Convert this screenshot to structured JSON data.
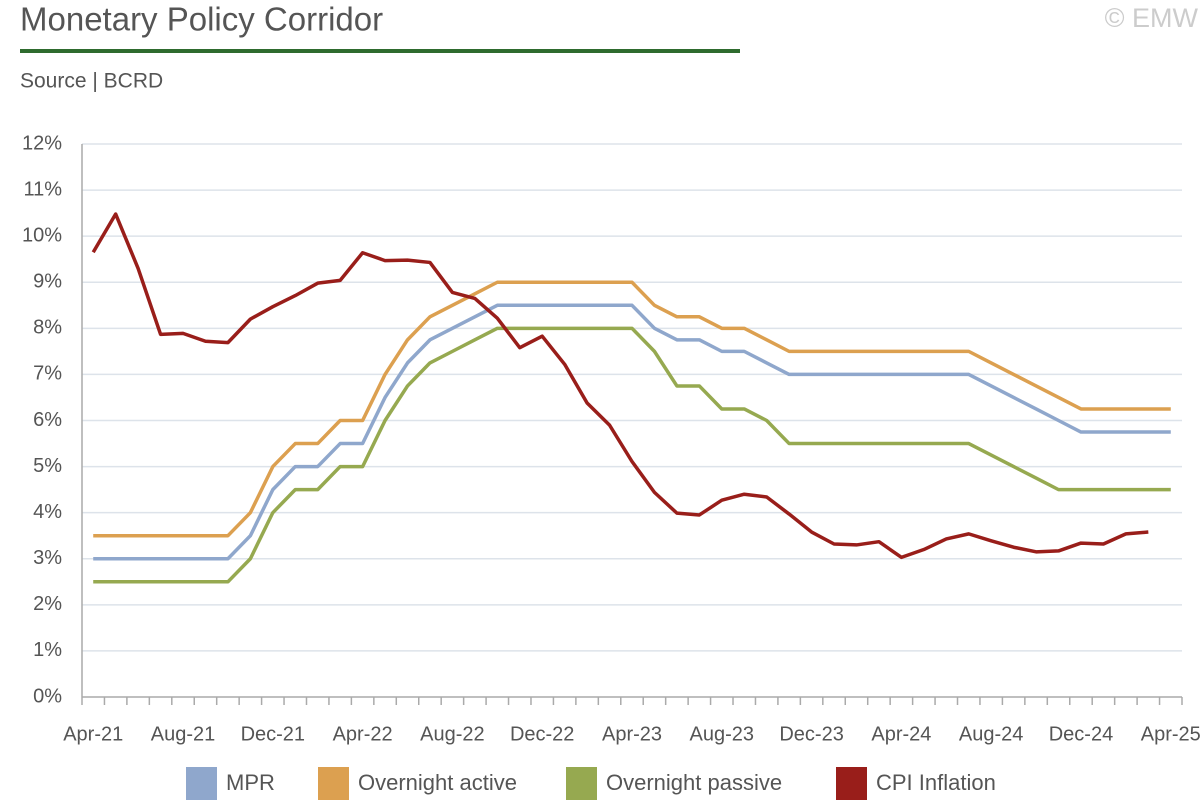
{
  "chart_data": {
    "type": "line",
    "title": "Monetary Policy Corridor",
    "subtitle": "Source | BCRD",
    "watermark": "© EMW",
    "categories": [
      "Apr-21",
      null,
      null,
      null,
      "Aug-21",
      null,
      null,
      null,
      "Dec-21",
      null,
      null,
      null,
      "Apr-22",
      null,
      null,
      null,
      "Aug-22",
      null,
      null,
      null,
      "Dec-22",
      null,
      null,
      null,
      "Apr-23",
      null,
      null,
      null,
      "Aug-23",
      null,
      null,
      null,
      "Dec-23",
      null,
      null,
      null,
      "Apr-24",
      null,
      null,
      null,
      "Aug-24",
      null,
      null,
      null,
      "Dec-24",
      null,
      null,
      null,
      "Apr-25"
    ],
    "series": [
      {
        "name": "MPR",
        "color": "#8fa7cc",
        "values": [
          3.0,
          3.0,
          3.0,
          3.0,
          3.0,
          3.0,
          3.0,
          3.5,
          4.5,
          5.0,
          5.0,
          5.5,
          5.5,
          6.5,
          7.25,
          7.75,
          8.0,
          8.25,
          8.5,
          8.5,
          8.5,
          8.5,
          8.5,
          8.5,
          8.5,
          8.0,
          7.75,
          7.75,
          7.5,
          7.5,
          7.25,
          7.0,
          7.0,
          7.0,
          7.0,
          7.0,
          7.0,
          7.0,
          7.0,
          7.0,
          6.75,
          6.5,
          6.25,
          6.0,
          5.75,
          5.75,
          5.75,
          5.75,
          5.75
        ]
      },
      {
        "name": "Overnight active",
        "color": "#dca050",
        "values": [
          3.5,
          3.5,
          3.5,
          3.5,
          3.5,
          3.5,
          3.5,
          4.0,
          5.0,
          5.5,
          5.5,
          6.0,
          6.0,
          7.0,
          7.75,
          8.25,
          8.5,
          8.75,
          9.0,
          9.0,
          9.0,
          9.0,
          9.0,
          9.0,
          9.0,
          8.5,
          8.25,
          8.25,
          8.0,
          8.0,
          7.75,
          7.5,
          7.5,
          7.5,
          7.5,
          7.5,
          7.5,
          7.5,
          7.5,
          7.5,
          7.25,
          7.0,
          6.75,
          6.5,
          6.25,
          6.25,
          6.25,
          6.25,
          6.25
        ]
      },
      {
        "name": "Overnight passive",
        "color": "#96a950",
        "values": [
          2.5,
          2.5,
          2.5,
          2.5,
          2.5,
          2.5,
          2.5,
          3.0,
          4.0,
          4.5,
          4.5,
          5.0,
          5.0,
          6.0,
          6.75,
          7.25,
          7.5,
          7.75,
          8.0,
          8.0,
          8.0,
          8.0,
          8.0,
          8.0,
          8.0,
          7.5,
          6.75,
          6.75,
          6.25,
          6.25,
          6.0,
          5.5,
          5.5,
          5.5,
          5.5,
          5.5,
          5.5,
          5.5,
          5.5,
          5.5,
          5.25,
          5.0,
          4.75,
          4.5,
          4.5,
          4.5,
          4.5,
          4.5,
          4.5
        ]
      },
      {
        "name": "CPI Inflation",
        "color": "#991e1a",
        "values": [
          9.65,
          10.48,
          9.3,
          7.87,
          7.89,
          7.72,
          7.69,
          8.2,
          8.47,
          8.71,
          8.98,
          9.04,
          9.64,
          9.47,
          9.48,
          9.43,
          8.78,
          8.65,
          8.22,
          7.58,
          7.83,
          7.22,
          6.38,
          5.9,
          5.11,
          4.44,
          3.99,
          3.95,
          4.27,
          4.4,
          4.34,
          3.97,
          3.58,
          3.32,
          3.3,
          3.37,
          3.03,
          3.2,
          3.43,
          3.54,
          3.39,
          3.25,
          3.15,
          3.17,
          3.34,
          3.32,
          3.54,
          3.58,
          null
        ]
      }
    ],
    "ylim": [
      0,
      12
    ],
    "yticks": [
      {
        "value": 0,
        "label": "0%"
      },
      {
        "value": 1,
        "label": "1%"
      },
      {
        "value": 2,
        "label": "2%"
      },
      {
        "value": 3,
        "label": "3%"
      },
      {
        "value": 4,
        "label": "4%"
      },
      {
        "value": 5,
        "label": "5%"
      },
      {
        "value": 6,
        "label": "6%"
      },
      {
        "value": 7,
        "label": "7%"
      },
      {
        "value": 8,
        "label": "8%"
      },
      {
        "value": 9,
        "label": "9%"
      },
      {
        "value": 10,
        "label": "10%"
      },
      {
        "value": 11,
        "label": "11%"
      },
      {
        "value": 12,
        "label": "12%"
      }
    ],
    "grid": true,
    "legend": "bottom"
  }
}
